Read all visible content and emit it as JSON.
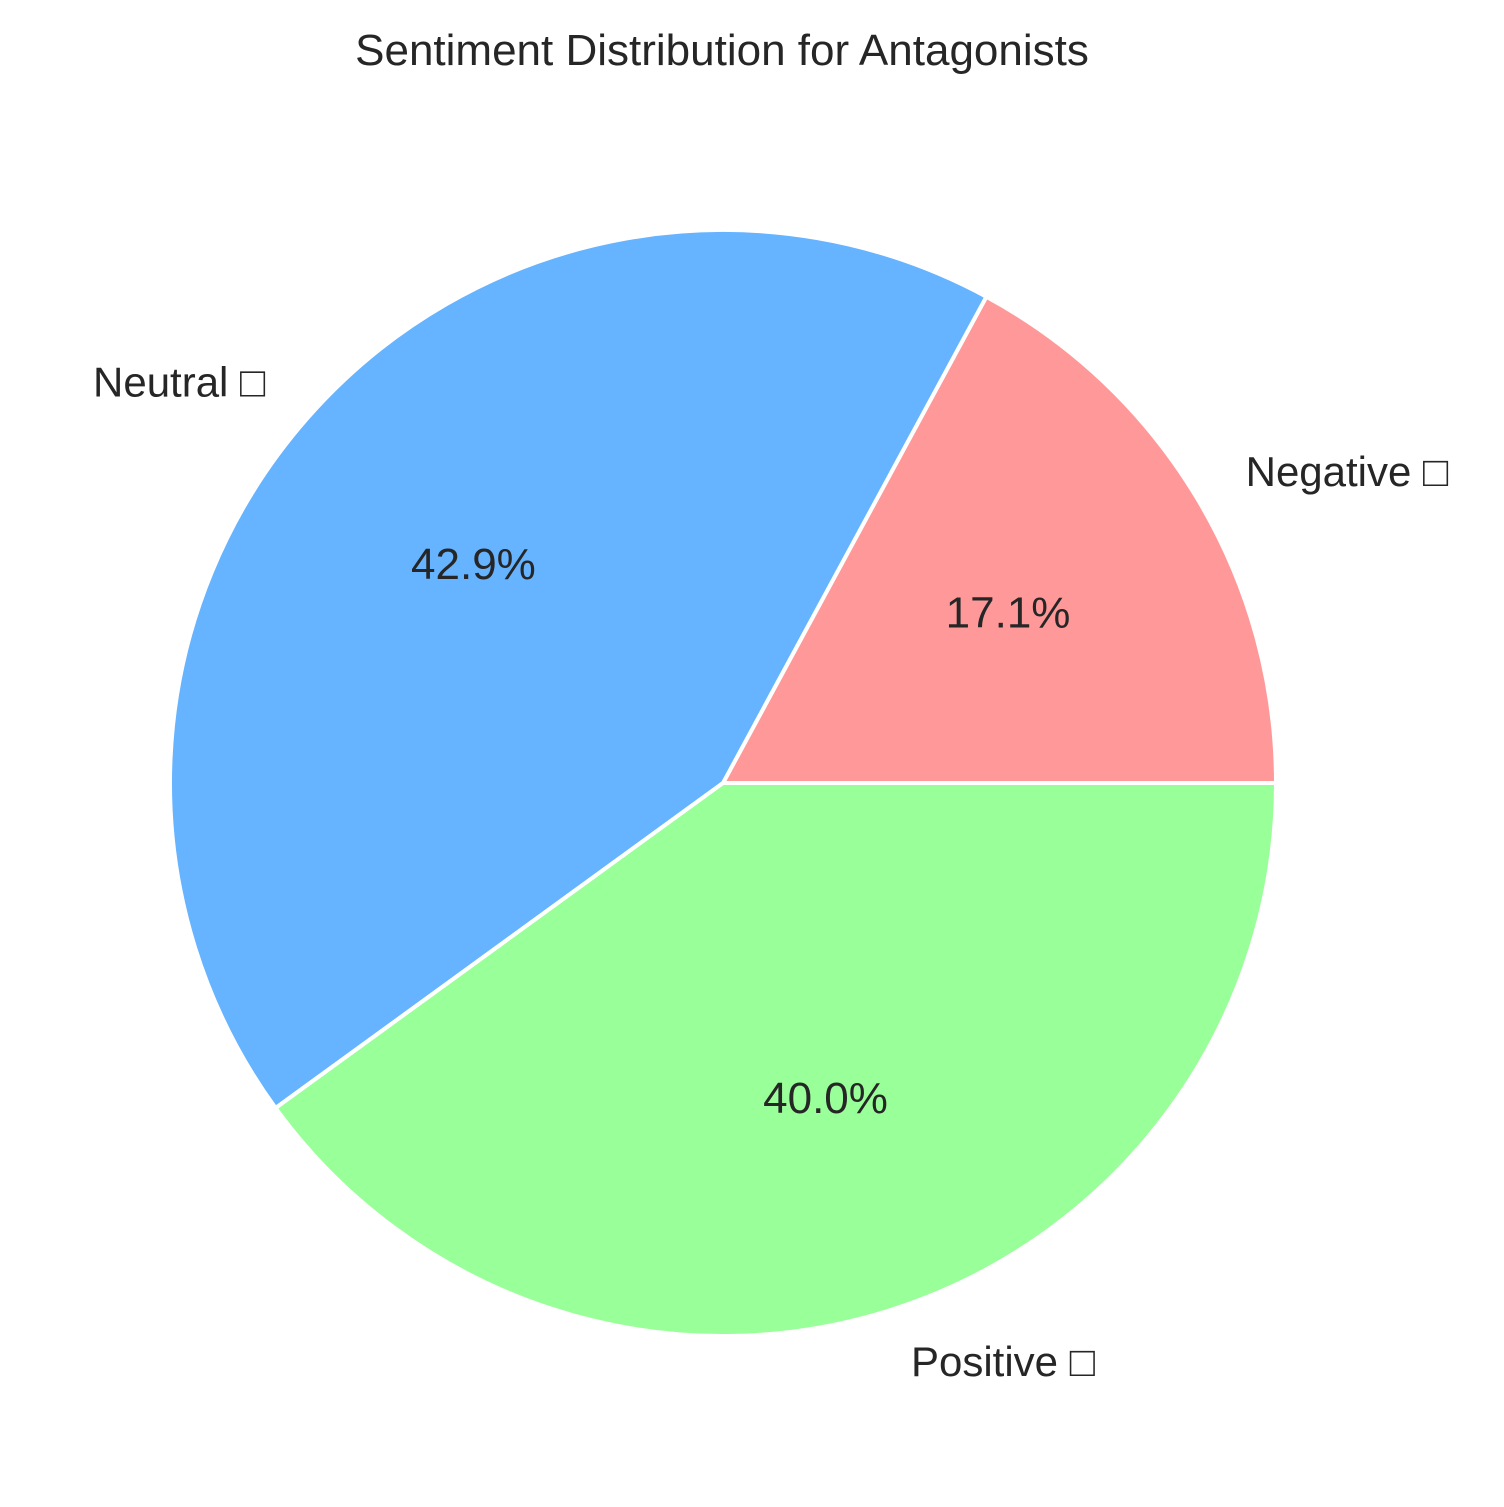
{
  "chart_data": {
    "type": "pie",
    "title": "Sentiment Distribution for Antagonists",
    "start_angle_deg": 0,
    "direction": "counterclockwise",
    "slices": [
      {
        "label": "Negative □",
        "value": 17.1,
        "pct_label": "17.1%",
        "color": "#ff9999"
      },
      {
        "label": "Neutral □",
        "value": 42.9,
        "pct_label": "42.9%",
        "color": "#66b3ff"
      },
      {
        "label": "Positive □",
        "value": 40.0,
        "pct_label": "40.0%",
        "color": "#99ff99"
      }
    ]
  }
}
